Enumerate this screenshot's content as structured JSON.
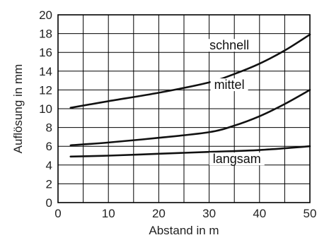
{
  "chart_data": {
    "type": "line",
    "title": "",
    "xlabel": "Abstand in m",
    "ylabel": "Auflösung in mm",
    "xlim": [
      0,
      50
    ],
    "ylim": [
      0,
      20
    ],
    "x_ticks": [
      "0",
      "10",
      "20",
      "30",
      "40",
      "50"
    ],
    "y_ticks": [
      "0",
      "2",
      "4",
      "6",
      "8",
      "10",
      "12",
      "14",
      "16",
      "18",
      "20"
    ],
    "grid": true,
    "series": [
      {
        "name": "schnell",
        "x": [
          2.5,
          10,
          20,
          30,
          35,
          40,
          45,
          50
        ],
        "y": [
          10.1,
          10.8,
          11.7,
          12.8,
          13.7,
          14.8,
          16.2,
          17.9
        ]
      },
      {
        "name": "mittel",
        "x": [
          2.5,
          10,
          20,
          30,
          35,
          40,
          45,
          50
        ],
        "y": [
          6.1,
          6.4,
          6.9,
          7.5,
          8.2,
          9.2,
          10.5,
          12.0
        ]
      },
      {
        "name": "langsam",
        "x": [
          2.5,
          10,
          20,
          30,
          40,
          50
        ],
        "y": [
          4.9,
          5.0,
          5.2,
          5.4,
          5.6,
          6.0
        ]
      }
    ]
  }
}
